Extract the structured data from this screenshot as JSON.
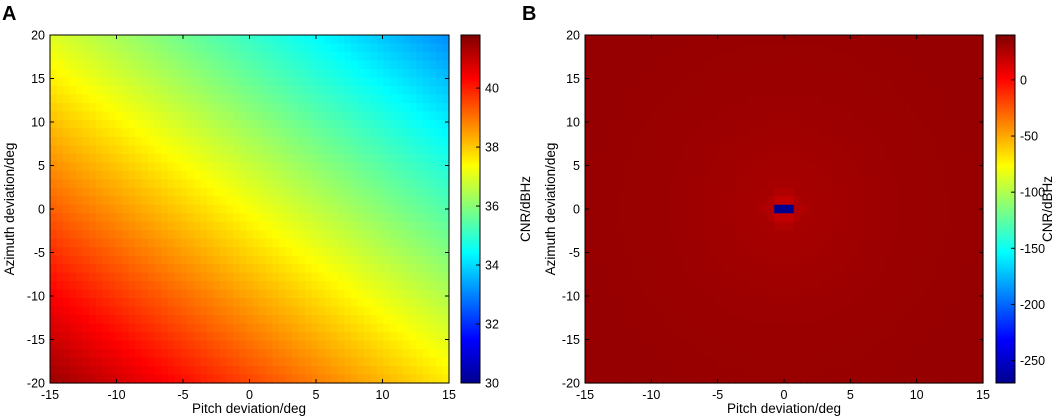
{
  "chart_data": [
    {
      "type": "heatmap",
      "panel_label": "A",
      "xlabel": "Pitch deviation/deg",
      "ylabel": "Azimuth deviation/deg",
      "xlim": [
        -15,
        15
      ],
      "ylim": [
        -20,
        20
      ],
      "x_ticks": [
        -15,
        -10,
        -5,
        0,
        5,
        10,
        15
      ],
      "y_ticks": [
        -20,
        -15,
        -10,
        -5,
        0,
        5,
        10,
        15,
        20
      ],
      "colorbar": {
        "label": "CNR/dBHz",
        "min": 30,
        "max": 41.8,
        "ticks": [
          30,
          32,
          34,
          36,
          38,
          40
        ],
        "colormap": "jet"
      },
      "grid_resolution": [
        61,
        41
      ],
      "description_of_field": "CNR decreases linearly along the diagonal from ~41.8 dBHz at (pitch -15, azimuth -20) to ~30 dBHz at (pitch 15, azimuth 20)",
      "value_at_corners": {
        "bottom_left": 41.8,
        "top_left": 38.5,
        "bottom_right": 37.5,
        "top_right": 30
      }
    },
    {
      "type": "heatmap",
      "panel_label": "B",
      "xlabel": "Pitch deviation/deg",
      "ylabel": "Azimuth deviation/deg",
      "xlim": [
        -15,
        15
      ],
      "ylim": [
        -20,
        20
      ],
      "x_ticks": [
        -15,
        -10,
        -5,
        0,
        5,
        10,
        15
      ],
      "y_ticks": [
        -20,
        -15,
        -10,
        -5,
        0,
        5,
        10,
        15,
        20
      ],
      "colorbar": {
        "label": "CNR/dBHz",
        "min": -270,
        "max": 40,
        "ticks": [
          -250,
          -200,
          -150,
          -100,
          -50,
          0
        ],
        "colormap": "jet"
      },
      "grid_resolution": [
        61,
        41
      ],
      "description_of_field": "Values near the top of the colour scale everywhere with elliptical contour bands; a sharp minimum of about -270 dBHz at pitch 0, azimuth 0",
      "minimum": {
        "x": 0,
        "y": 0,
        "value": -270
      }
    }
  ]
}
